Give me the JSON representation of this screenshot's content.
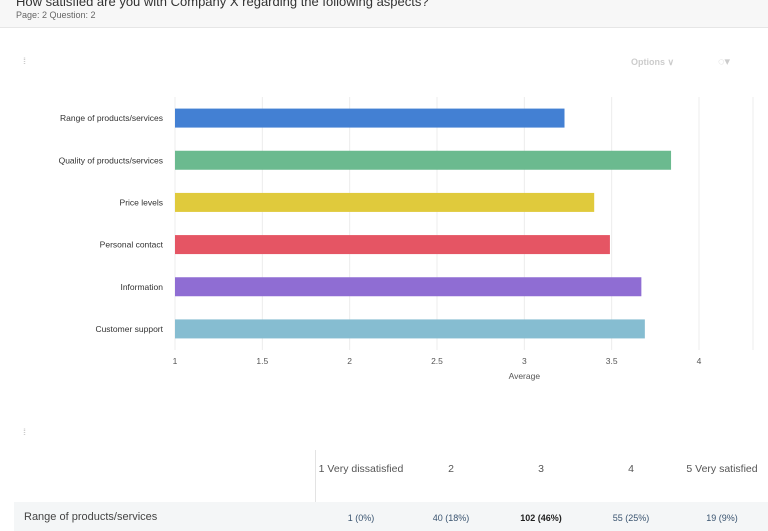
{
  "header": {
    "title": "How satisfied are you with Company X regarding the following aspects?",
    "subtitle": "Page: 2 Question: 2"
  },
  "toolbar": {
    "options_label": "Options ∨",
    "palette_icon": "palette-icon",
    "drag_icon": "drag-handle-icon"
  },
  "chart_data": {
    "type": "bar",
    "orientation": "horizontal",
    "categories": [
      "Range of products/services",
      "Quality of products/services",
      "Price levels",
      "Personal contact",
      "Information",
      "Customer support"
    ],
    "values": [
      3.23,
      3.84,
      3.4,
      3.49,
      3.67,
      3.69
    ],
    "colors": [
      "#4380d3",
      "#6bba8f",
      "#e0ca3c",
      "#e55564",
      "#8f6dd3",
      "#86bdd1"
    ],
    "xlabel": "Average",
    "xlim": [
      1,
      4
    ],
    "xticks": [
      "1",
      "1.5",
      "2",
      "2.5",
      "3",
      "3.5",
      "4"
    ],
    "grid": true
  },
  "table": {
    "columns": [
      "1 Very dissatisfied",
      "2",
      "3",
      "4",
      "5 Very satisfied"
    ],
    "rows": [
      {
        "label": "Range of products/services",
        "cells": [
          "1 (0%)",
          "40 (18%)",
          "102 (46%)",
          "55 (25%)",
          "19 (9%)"
        ],
        "max_index": 2
      }
    ]
  }
}
